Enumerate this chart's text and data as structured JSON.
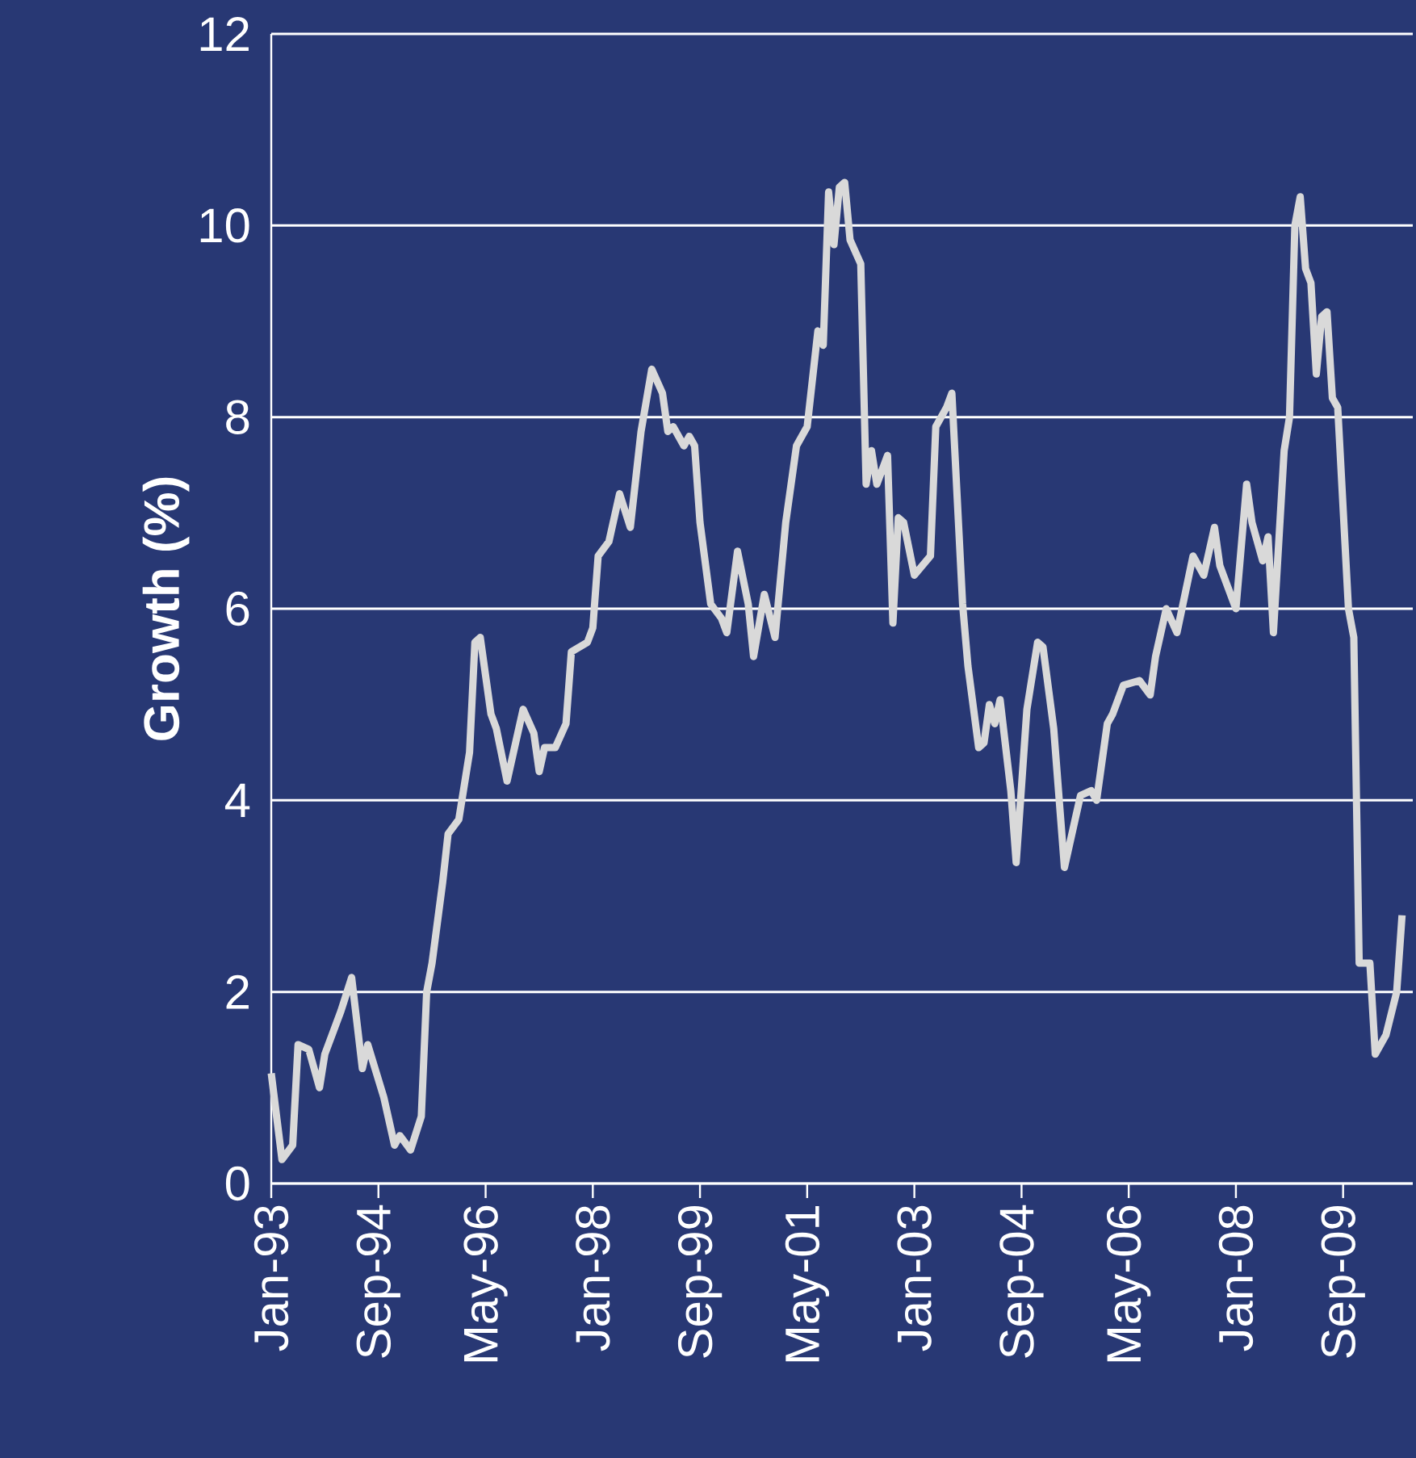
{
  "chart_data": {
    "type": "line",
    "ylabel": "Growth (%)",
    "xlim": [
      "1993-01",
      "2010-10"
    ],
    "ylim": [
      0,
      12
    ],
    "yticks": [
      0,
      2,
      4,
      6,
      8,
      10,
      12
    ],
    "xticks": [
      {
        "value": "1993-01",
        "label": "Jan-93"
      },
      {
        "value": "1994-09",
        "label": "Sep-94"
      },
      {
        "value": "1996-05",
        "label": "May-96"
      },
      {
        "value": "1998-01",
        "label": "Jan-98"
      },
      {
        "value": "1999-09",
        "label": "Sep-99"
      },
      {
        "value": "2001-05",
        "label": "May-01"
      },
      {
        "value": "2003-01",
        "label": "Jan-03"
      },
      {
        "value": "2004-09",
        "label": "Sep-04"
      },
      {
        "value": "2006-05",
        "label": "May-06"
      },
      {
        "value": "2008-01",
        "label": "Jan-08"
      },
      {
        "value": "2009-09",
        "label": "Sep-09"
      }
    ],
    "grid": "y",
    "series": [
      {
        "color": "#d9d9d9",
        "x": [
          "1993-01",
          "1993-03",
          "1993-05",
          "1993-06",
          "1993-08",
          "1993-10",
          "1993-11",
          "1994-02",
          "1994-04",
          "1994-06",
          "1994-07",
          "1994-10",
          "1994-12",
          "1995-01",
          "1995-03",
          "1995-05",
          "1995-06",
          "1995-07",
          "1995-09",
          "1995-10",
          "1995-12",
          "1996-02",
          "1996-03",
          "1996-04",
          "1996-06",
          "1996-07",
          "1996-09",
          "1996-12",
          "1997-02",
          "1997-03",
          "1997-04",
          "1997-06",
          "1997-08",
          "1997-09",
          "1997-12",
          "1998-01",
          "1998-02",
          "1998-04",
          "1998-06",
          "1998-08",
          "1998-10",
          "1998-12",
          "1999-02",
          "1999-03",
          "1999-04",
          "1999-06",
          "1999-07",
          "1999-08",
          "1999-09",
          "1999-11",
          "2000-01",
          "2000-02",
          "2000-04",
          "2000-06",
          "2000-07",
          "2000-09",
          "2000-11",
          "2001-01",
          "2001-03",
          "2001-05",
          "2001-07",
          "2001-08",
          "2001-09",
          "2001-10",
          "2001-11",
          "2001-12",
          "2002-01",
          "2002-03",
          "2002-04",
          "2002-05",
          "2002-06",
          "2002-08",
          "2002-09",
          "2002-10",
          "2002-11",
          "2003-01",
          "2003-04",
          "2003-05",
          "2003-07",
          "2003-08",
          "2003-10",
          "2003-11",
          "2004-01",
          "2004-02",
          "2004-03",
          "2004-04",
          "2004-05",
          "2004-07",
          "2004-08",
          "2004-10",
          "2004-12",
          "2005-01",
          "2005-03",
          "2005-05",
          "2005-08",
          "2005-10",
          "2005-11",
          "2006-01",
          "2006-02",
          "2006-04",
          "2006-07",
          "2006-09",
          "2006-10",
          "2006-12",
          "2007-02",
          "2007-05",
          "2007-07",
          "2007-09",
          "2007-10",
          "2008-01",
          "2008-03",
          "2008-04",
          "2008-06",
          "2008-07",
          "2008-08",
          "2008-10",
          "2008-11",
          "2008-12",
          "2009-01",
          "2009-02",
          "2009-03",
          "2009-04",
          "2009-05",
          "2009-06",
          "2009-07",
          "2009-08",
          "2009-10",
          "2009-11",
          "2009-12",
          "2010-02",
          "2010-03",
          "2010-05",
          "2010-07",
          "2010-08"
        ],
        "values": [
          1.15,
          0.25,
          0.4,
          1.45,
          1.4,
          1.0,
          1.35,
          1.8,
          2.15,
          1.2,
          1.45,
          0.9,
          0.4,
          0.5,
          0.35,
          0.7,
          2.0,
          2.3,
          3.15,
          3.65,
          3.8,
          4.5,
          5.65,
          5.7,
          4.9,
          4.75,
          4.2,
          4.95,
          4.7,
          4.3,
          4.55,
          4.55,
          4.8,
          5.55,
          5.65,
          5.8,
          6.55,
          6.7,
          7.2,
          6.85,
          7.85,
          8.5,
          8.25,
          7.85,
          7.9,
          7.7,
          7.8,
          7.7,
          6.9,
          6.05,
          5.9,
          5.75,
          6.6,
          6.05,
          5.5,
          6.15,
          5.7,
          6.9,
          7.7,
          7.9,
          8.9,
          8.75,
          10.35,
          9.8,
          10.4,
          10.45,
          9.85,
          9.6,
          7.3,
          7.65,
          7.3,
          7.6,
          5.85,
          6.95,
          6.9,
          6.35,
          6.55,
          7.9,
          8.1,
          8.25,
          6.05,
          5.4,
          4.55,
          4.6,
          5.0,
          4.8,
          5.05,
          4.1,
          3.35,
          4.95,
          5.65,
          5.6,
          4.75,
          3.3,
          4.05,
          4.1,
          4.0,
          4.8,
          4.9,
          5.2,
          5.25,
          5.1,
          5.5,
          6.0,
          5.75,
          6.55,
          6.35,
          6.85,
          6.45,
          6.0,
          7.3,
          6.9,
          6.5,
          6.75,
          5.75,
          7.65,
          8.0,
          10.0,
          10.3,
          9.55,
          9.4,
          8.45,
          9.05,
          9.1,
          8.2,
          8.1,
          6.0,
          5.7,
          2.3,
          2.3,
          1.35,
          1.55,
          2.0,
          2.8
        ]
      }
    ]
  }
}
